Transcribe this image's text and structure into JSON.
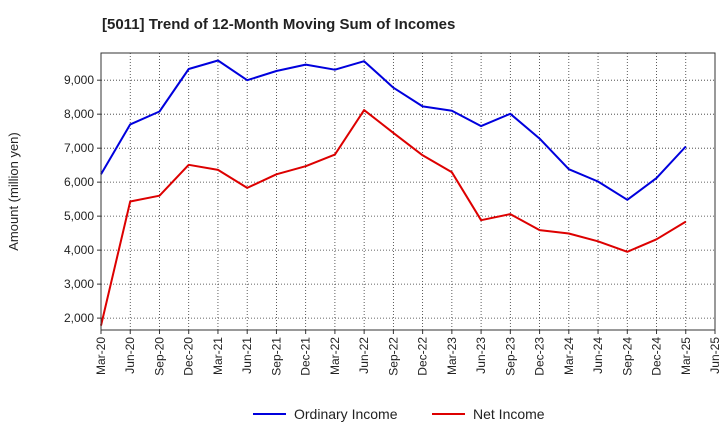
{
  "chart_data": {
    "type": "line",
    "title": "[5011]  Trend of 12-Month Moving Sum of Incomes",
    "ylabel": "Amount (million yen)",
    "xlabel": "",
    "ylim": [
      1650,
      9800
    ],
    "yticks": [
      2000,
      3000,
      4000,
      5000,
      6000,
      7000,
      8000,
      9000
    ],
    "ytick_labels": [
      "2,000",
      "3,000",
      "4,000",
      "5,000",
      "6,000",
      "7,000",
      "8,000",
      "9,000"
    ],
    "categories": [
      "Mar-20",
      "Jun-20",
      "Sep-20",
      "Dec-20",
      "Mar-21",
      "Jun-21",
      "Sep-21",
      "Dec-21",
      "Mar-22",
      "Jun-22",
      "Sep-22",
      "Dec-22",
      "Mar-23",
      "Jun-23",
      "Sep-23",
      "Dec-23",
      "Mar-24",
      "Jun-24",
      "Sep-24",
      "Dec-24",
      "Mar-25",
      "Jun-25"
    ],
    "grid": true,
    "legend_position": "bottom",
    "series": [
      {
        "name": "Ordinary Income",
        "color": "#0000dd",
        "values": [
          6230,
          7700,
          8080,
          9330,
          9580,
          9000,
          9270,
          9460,
          9310,
          9560,
          8780,
          8230,
          8100,
          7650,
          8010,
          7280,
          6380,
          6020,
          5480,
          6120,
          7050,
          null
        ]
      },
      {
        "name": "Net Income",
        "color": "#dd0000",
        "values": [
          1780,
          5430,
          5600,
          6510,
          6360,
          5830,
          6230,
          6470,
          6810,
          8120,
          7450,
          6790,
          6290,
          4880,
          5060,
          4590,
          4490,
          4260,
          3950,
          4320,
          4840,
          null
        ]
      }
    ]
  }
}
